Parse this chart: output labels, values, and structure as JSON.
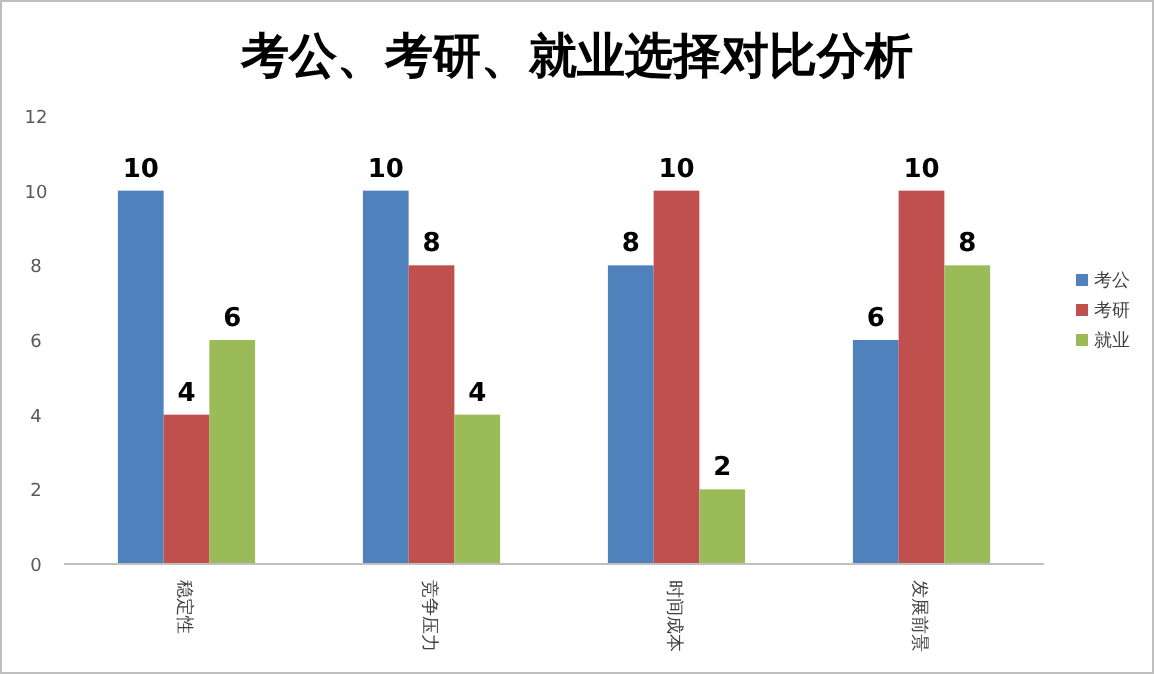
{
  "chart_data": {
    "type": "bar",
    "title": "考公、考研、就业选择对比分析",
    "categories": [
      "稳定性",
      "竞争压力",
      "时间成本",
      "发展前景"
    ],
    "series": [
      {
        "name": "考公",
        "color": "#4f81bd",
        "values": [
          10,
          10,
          8,
          6
        ]
      },
      {
        "name": "考研",
        "color": "#c0504d",
        "values": [
          4,
          8,
          10,
          10
        ]
      },
      {
        "name": "就业",
        "color": "#9bbb59",
        "values": [
          6,
          4,
          2,
          8
        ]
      }
    ],
    "ylim": [
      0,
      12
    ],
    "yticks": [
      0,
      2,
      4,
      6,
      8,
      10,
      12
    ],
    "grid": false,
    "legend": "right",
    "data_labels": true
  }
}
